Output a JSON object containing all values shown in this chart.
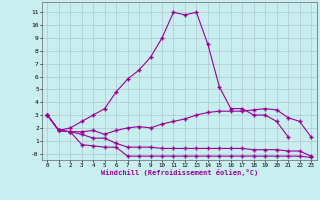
{
  "xlabel": "Windchill (Refroidissement éolien,°C)",
  "x": [
    0,
    1,
    2,
    3,
    4,
    5,
    6,
    7,
    8,
    9,
    10,
    11,
    12,
    13,
    14,
    15,
    16,
    17,
    18,
    19,
    20,
    21,
    22,
    23
  ],
  "line1": [
    3.0,
    1.8,
    1.7,
    1.7,
    1.8,
    1.5,
    1.8,
    2.0,
    2.1,
    2.0,
    2.3,
    2.5,
    2.7,
    3.0,
    3.2,
    3.3,
    3.3,
    3.3,
    3.4,
    3.5,
    3.4,
    2.8,
    2.5,
    1.3
  ],
  "line2": [
    3.0,
    1.8,
    1.7,
    1.5,
    1.2,
    1.2,
    0.8,
    0.5,
    0.5,
    0.5,
    0.4,
    0.4,
    0.4,
    0.4,
    0.4,
    0.4,
    0.4,
    0.4,
    0.3,
    0.3,
    0.3,
    0.2,
    0.2,
    -0.2
  ],
  "line3": [
    3.0,
    1.8,
    1.7,
    0.7,
    0.6,
    0.5,
    0.5,
    -0.2,
    -0.2,
    -0.2,
    -0.2,
    -0.2,
    -0.2,
    -0.2,
    -0.2,
    -0.2,
    -0.2,
    -0.2,
    -0.2,
    -0.2,
    -0.2,
    -0.2,
    -0.2,
    -0.3
  ],
  "line4": [
    3.0,
    1.8,
    2.0,
    2.5,
    3.0,
    3.5,
    4.8,
    5.8,
    6.5,
    7.5,
    9.0,
    11.0,
    10.8,
    11.0,
    8.5,
    5.2,
    3.5,
    3.5,
    3.0,
    3.0,
    2.5,
    1.3,
    null,
    null
  ],
  "line_color": "#990099",
  "bg_color": "#c8eef0",
  "grid_color": "#b0c8d0",
  "ylim": [
    -0.5,
    11.8
  ],
  "ytick_vals": [
    0,
    1,
    2,
    3,
    4,
    5,
    6,
    7,
    8,
    9,
    10,
    11
  ],
  "ytick_labels": [
    "-0",
    "1",
    "2",
    "3",
    "4",
    "5",
    "6",
    "7",
    "8",
    "9",
    "10",
    "11"
  ],
  "marker": "+"
}
